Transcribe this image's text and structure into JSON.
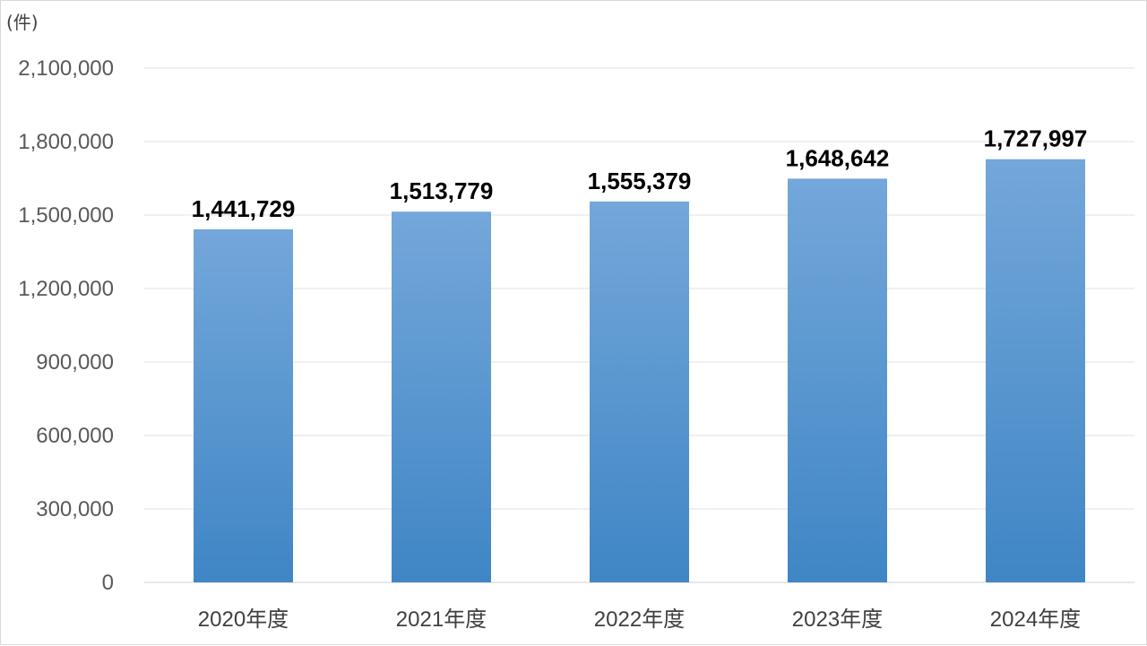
{
  "unit_label": "(件)",
  "colors": {
    "bar_top": "#74A7DA",
    "bar_bottom": "#3F86C5",
    "grid": "#e0e0e0",
    "axis": "#d0d0d0"
  },
  "chart_data": {
    "type": "bar",
    "categories": [
      "2020年度",
      "2021年度",
      "2022年度",
      "2023年度",
      "2024年度"
    ],
    "values": [
      1441729,
      1513779,
      1555379,
      1648642,
      1727997
    ],
    "data_labels": [
      "1,441,729",
      "1,513,779",
      "1,555,379",
      "1,648,642",
      "1,727,997"
    ],
    "title": "",
    "xlabel": "",
    "ylabel": "(件)",
    "ylim": [
      0,
      2100000
    ],
    "yticks": [
      0,
      300000,
      600000,
      900000,
      1200000,
      1500000,
      1800000,
      2100000
    ],
    "ytick_labels": [
      "0",
      "300,000",
      "600,000",
      "900,000",
      "1,200,000",
      "1,500,000",
      "1,800,000",
      "2,100,000"
    ],
    "grid": true,
    "legend": "none"
  }
}
